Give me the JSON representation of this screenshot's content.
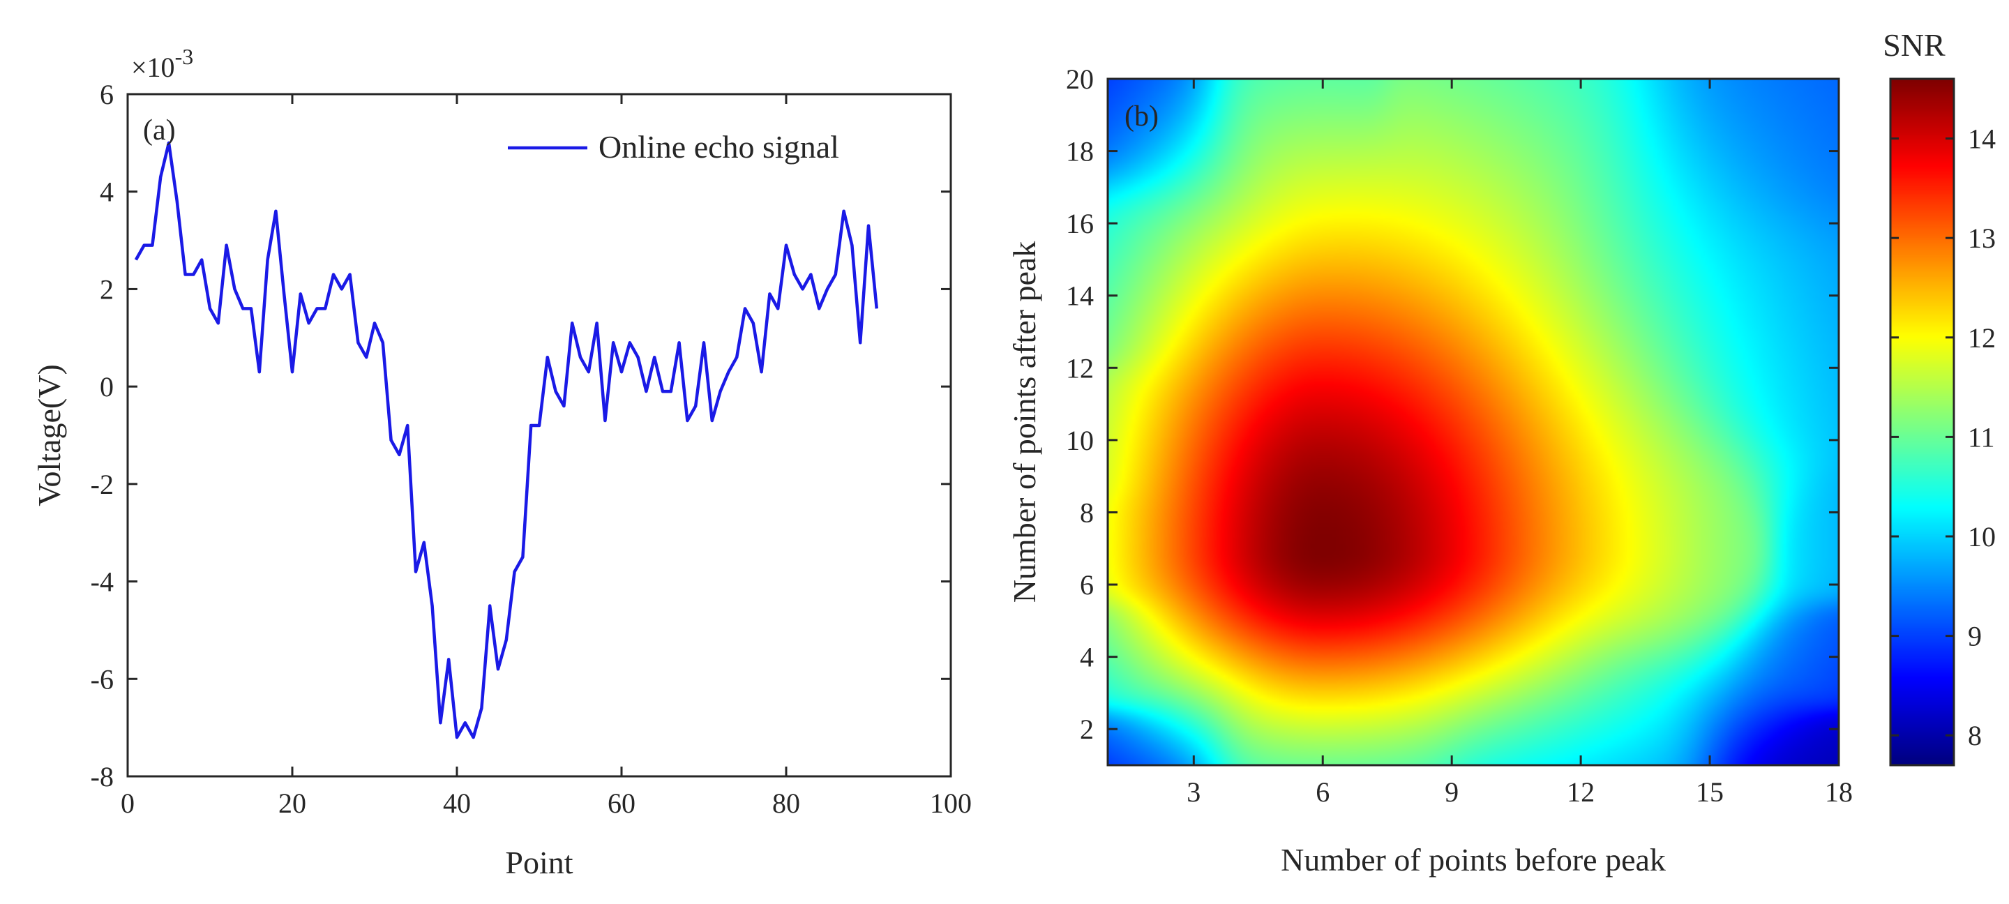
{
  "chart_data": [
    {
      "type": "line",
      "panel_label": "(a)",
      "title": "",
      "xlabel": "Point",
      "ylabel": "Voltage(V)",
      "y_exponent_label": "×10",
      "y_exponent_power": "-3",
      "xlim": [
        0,
        100
      ],
      "ylim": [
        -8,
        6
      ],
      "xticks": [
        0,
        20,
        40,
        60,
        80,
        100
      ],
      "yticks": [
        -8,
        -6,
        -4,
        -2,
        0,
        2,
        4,
        6
      ],
      "legend_position": "top-right",
      "series": [
        {
          "name": "Online echo signal",
          "color": "#1a1ae6",
          "x": [
            1,
            2,
            3,
            4,
            5,
            6,
            7,
            8,
            9,
            10,
            11,
            12,
            13,
            14,
            15,
            16,
            17,
            18,
            19,
            20,
            21,
            22,
            23,
            24,
            25,
            26,
            27,
            28,
            29,
            30,
            31,
            32,
            33,
            34,
            35,
            36,
            37,
            38,
            39,
            40,
            41,
            42,
            43,
            44,
            45,
            46,
            47,
            48,
            49,
            50,
            51,
            52,
            53,
            54,
            55,
            56,
            57,
            58,
            59,
            60,
            61,
            62,
            63,
            64,
            65,
            66,
            67,
            68,
            69,
            70,
            71,
            72,
            73,
            74,
            75,
            76,
            77,
            78,
            79,
            80,
            81,
            82,
            83,
            84,
            85,
            86,
            87,
            88,
            89,
            90,
            91
          ],
          "values": [
            2.6,
            2.9,
            2.9,
            4.3,
            5.0,
            3.8,
            2.3,
            2.3,
            2.6,
            1.6,
            1.3,
            2.9,
            2.0,
            1.6,
            1.6,
            0.3,
            2.6,
            3.6,
            1.9,
            0.3,
            1.9,
            1.3,
            1.6,
            1.6,
            2.3,
            2.0,
            2.3,
            0.9,
            0.6,
            1.3,
            0.9,
            -1.1,
            -1.4,
            -0.8,
            -3.8,
            -3.2,
            -4.5,
            -6.9,
            -5.6,
            -7.2,
            -6.9,
            -7.2,
            -6.6,
            -4.5,
            -5.8,
            -5.2,
            -3.8,
            -3.5,
            -0.8,
            -0.8,
            0.6,
            -0.1,
            -0.4,
            1.3,
            0.6,
            0.3,
            1.3,
            -0.7,
            0.9,
            0.3,
            0.9,
            0.6,
            -0.1,
            0.6,
            -0.1,
            -0.1,
            0.9,
            -0.7,
            -0.4,
            0.9,
            -0.7,
            -0.1,
            0.3,
            0.6,
            1.6,
            1.3,
            0.3,
            1.9,
            1.6,
            2.9,
            2.3,
            2.0,
            2.3,
            1.6,
            2.0,
            2.3,
            3.6,
            2.9,
            0.9,
            3.3,
            1.6
          ]
        }
      ]
    },
    {
      "type": "heatmap",
      "panel_label": "(b)",
      "title": "",
      "xlabel": "Number of points before peak",
      "ylabel": "Number of points after peak",
      "xlim": [
        1,
        18
      ],
      "ylim": [
        1,
        20
      ],
      "xticks": [
        3,
        6,
        9,
        12,
        15,
        18
      ],
      "yticks": [
        2,
        4,
        6,
        8,
        10,
        12,
        14,
        16,
        18,
        20
      ],
      "colorbar": {
        "label": "SNR",
        "range": [
          7.7,
          14.6
        ],
        "ticks": [
          8,
          9,
          10,
          11,
          12,
          13,
          14
        ],
        "colormap": "jet"
      },
      "peak": {
        "x": 6,
        "y": 7,
        "snr": 14.6
      },
      "anchors": [
        {
          "x": 1,
          "y": 1,
          "snr": 8.1
        },
        {
          "x": 1,
          "y": 4,
          "snr": 10.2
        },
        {
          "x": 1,
          "y": 7,
          "snr": 11.8
        },
        {
          "x": 1,
          "y": 10,
          "snr": 11.4
        },
        {
          "x": 1,
          "y": 14,
          "snr": 10.5
        },
        {
          "x": 1,
          "y": 20,
          "snr": 8.3
        },
        {
          "x": 6,
          "y": 1,
          "snr": 11.2
        },
        {
          "x": 6,
          "y": 20,
          "snr": 11.2
        },
        {
          "x": 9,
          "y": 20,
          "snr": 11.9
        },
        {
          "x": 12,
          "y": 1,
          "snr": 10.4
        },
        {
          "x": 18,
          "y": 1,
          "snr": 7.7
        },
        {
          "x": 18,
          "y": 4,
          "snr": 9.0
        },
        {
          "x": 18,
          "y": 7,
          "snr": 10.2
        },
        {
          "x": 18,
          "y": 12,
          "snr": 10.4
        },
        {
          "x": 18,
          "y": 20,
          "snr": 10.0
        },
        {
          "x": 15,
          "y": 7,
          "snr": 12.1
        }
      ]
    }
  ]
}
